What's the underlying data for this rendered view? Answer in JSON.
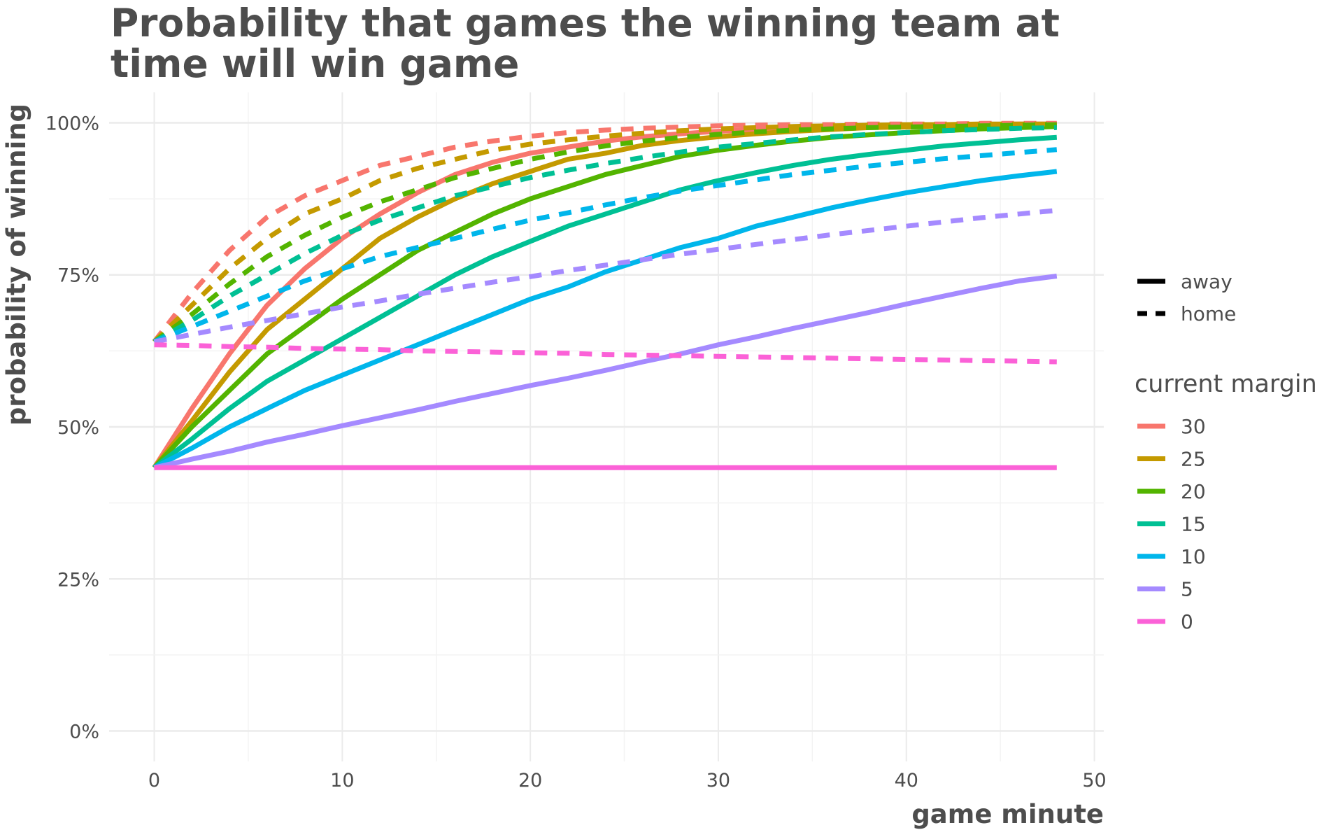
{
  "chart_data": {
    "type": "line",
    "title": "Probability that games the winning team at time will win game",
    "xlabel": "game minute",
    "ylabel": "probability of winning",
    "xlim": [
      -2.4,
      50.5
    ],
    "ylim": [
      -0.05,
      1.05
    ],
    "x_ticks": [
      0,
      10,
      20,
      30,
      40,
      50
    ],
    "x_tick_labels": [
      "0",
      "10",
      "20",
      "30",
      "40",
      "50"
    ],
    "y_ticks": [
      0,
      0.25,
      0.5,
      0.75,
      1.0
    ],
    "y_tick_labels": [
      "0%",
      "25%",
      "50%",
      "75%",
      "100%"
    ],
    "grid": true,
    "legend_position": "right",
    "linetype_legend": {
      "items": [
        {
          "label": "away",
          "dash": "solid"
        },
        {
          "label": "home",
          "dash": "dashed"
        }
      ]
    },
    "color_legend": {
      "title": "current margin",
      "items": [
        {
          "label": "30",
          "color": "#F8766D"
        },
        {
          "label": "25",
          "color": "#C49A00"
        },
        {
          "label": "20",
          "color": "#53B400"
        },
        {
          "label": "15",
          "color": "#00C094"
        },
        {
          "label": "10",
          "color": "#00B6EB"
        },
        {
          "label": "5",
          "color": "#A58AFF"
        },
        {
          "label": "0",
          "color": "#FB61D7"
        }
      ]
    },
    "x": [
      0,
      2,
      4,
      6,
      8,
      10,
      12,
      14,
      16,
      18,
      20,
      22,
      24,
      26,
      28,
      30,
      32,
      34,
      36,
      38,
      40,
      42,
      44,
      46,
      48
    ],
    "series": [
      {
        "margin": "30",
        "location": "away",
        "color": "#F8766D",
        "values": [
          0.433,
          0.53,
          0.62,
          0.7,
          0.76,
          0.81,
          0.85,
          0.885,
          0.915,
          0.935,
          0.95,
          0.96,
          0.97,
          0.977,
          0.982,
          0.986,
          0.989,
          0.991,
          0.993,
          0.995,
          0.996,
          0.997,
          0.997,
          0.998,
          0.998
        ]
      },
      {
        "margin": "25",
        "location": "away",
        "color": "#C49A00",
        "values": [
          0.433,
          0.51,
          0.59,
          0.66,
          0.71,
          0.76,
          0.81,
          0.845,
          0.875,
          0.9,
          0.92,
          0.94,
          0.95,
          0.963,
          0.971,
          0.977,
          0.982,
          0.986,
          0.989,
          0.992,
          0.993,
          0.995,
          0.996,
          0.997,
          0.997
        ]
      },
      {
        "margin": "20",
        "location": "away",
        "color": "#53B400",
        "values": [
          0.433,
          0.5,
          0.56,
          0.62,
          0.665,
          0.71,
          0.75,
          0.79,
          0.82,
          0.85,
          0.875,
          0.895,
          0.915,
          0.93,
          0.945,
          0.955,
          0.963,
          0.97,
          0.976,
          0.98,
          0.984,
          0.987,
          0.99,
          0.992,
          0.994
        ]
      },
      {
        "margin": "15",
        "location": "away",
        "color": "#00C094",
        "values": [
          0.433,
          0.48,
          0.53,
          0.575,
          0.61,
          0.645,
          0.68,
          0.715,
          0.75,
          0.78,
          0.805,
          0.83,
          0.85,
          0.87,
          0.89,
          0.905,
          0.918,
          0.93,
          0.94,
          0.948,
          0.955,
          0.962,
          0.967,
          0.972,
          0.976
        ]
      },
      {
        "margin": "10",
        "location": "away",
        "color": "#00B6EB",
        "values": [
          0.433,
          0.465,
          0.5,
          0.53,
          0.56,
          0.585,
          0.61,
          0.635,
          0.66,
          0.685,
          0.71,
          0.73,
          0.755,
          0.775,
          0.795,
          0.81,
          0.83,
          0.845,
          0.86,
          0.873,
          0.885,
          0.895,
          0.905,
          0.913,
          0.92
        ]
      },
      {
        "margin": "5",
        "location": "away",
        "color": "#A58AFF",
        "values": [
          0.433,
          0.447,
          0.46,
          0.475,
          0.488,
          0.502,
          0.515,
          0.528,
          0.542,
          0.555,
          0.568,
          0.58,
          0.593,
          0.607,
          0.62,
          0.635,
          0.648,
          0.662,
          0.675,
          0.688,
          0.702,
          0.715,
          0.728,
          0.74,
          0.748
        ]
      },
      {
        "margin": "0",
        "location": "away",
        "color": "#FB61D7",
        "values": [
          0.433,
          0.433,
          0.433,
          0.433,
          0.433,
          0.433,
          0.433,
          0.433,
          0.433,
          0.433,
          0.433,
          0.433,
          0.433,
          0.433,
          0.433,
          0.433,
          0.433,
          0.433,
          0.433,
          0.433,
          0.433,
          0.433,
          0.433,
          0.433,
          0.433
        ]
      },
      {
        "margin": "30",
        "location": "home",
        "color": "#F8766D",
        "values": [
          0.64,
          0.72,
          0.79,
          0.845,
          0.88,
          0.905,
          0.93,
          0.945,
          0.96,
          0.97,
          0.978,
          0.984,
          0.988,
          0.991,
          0.993,
          0.995,
          0.996,
          0.997,
          0.997,
          0.998,
          0.998,
          0.998,
          0.999,
          0.999,
          0.999
        ]
      },
      {
        "margin": "25",
        "location": "home",
        "color": "#C49A00",
        "values": [
          0.64,
          0.7,
          0.76,
          0.81,
          0.85,
          0.875,
          0.905,
          0.925,
          0.94,
          0.955,
          0.965,
          0.972,
          0.978,
          0.983,
          0.987,
          0.99,
          0.992,
          0.994,
          0.995,
          0.996,
          0.997,
          0.997,
          0.998,
          0.998,
          0.998
        ]
      },
      {
        "margin": "20",
        "location": "home",
        "color": "#53B400",
        "values": [
          0.64,
          0.685,
          0.735,
          0.78,
          0.815,
          0.845,
          0.87,
          0.89,
          0.91,
          0.925,
          0.94,
          0.952,
          0.962,
          0.97,
          0.976,
          0.981,
          0.985,
          0.988,
          0.99,
          0.992,
          0.993,
          0.994,
          0.995,
          0.996,
          0.997
        ]
      },
      {
        "margin": "15",
        "location": "home",
        "color": "#00C094",
        "values": [
          0.64,
          0.675,
          0.715,
          0.75,
          0.785,
          0.815,
          0.84,
          0.86,
          0.88,
          0.895,
          0.91,
          0.922,
          0.933,
          0.943,
          0.952,
          0.96,
          0.966,
          0.972,
          0.977,
          0.981,
          0.984,
          0.987,
          0.989,
          0.991,
          0.992
        ]
      },
      {
        "margin": "10",
        "location": "home",
        "color": "#00B6EB",
        "values": [
          0.64,
          0.665,
          0.69,
          0.715,
          0.74,
          0.76,
          0.78,
          0.795,
          0.81,
          0.825,
          0.84,
          0.852,
          0.865,
          0.877,
          0.888,
          0.897,
          0.906,
          0.915,
          0.922,
          0.929,
          0.935,
          0.941,
          0.946,
          0.951,
          0.956
        ]
      },
      {
        "margin": "5",
        "location": "home",
        "color": "#A58AFF",
        "values": [
          0.64,
          0.652,
          0.664,
          0.675,
          0.686,
          0.697,
          0.707,
          0.718,
          0.728,
          0.738,
          0.747,
          0.757,
          0.766,
          0.775,
          0.784,
          0.792,
          0.8,
          0.808,
          0.816,
          0.823,
          0.83,
          0.837,
          0.844,
          0.85,
          0.856
        ]
      },
      {
        "margin": "0",
        "location": "home",
        "color": "#FB61D7",
        "values": [
          0.635,
          0.634,
          0.632,
          0.631,
          0.629,
          0.628,
          0.627,
          0.625,
          0.624,
          0.623,
          0.622,
          0.621,
          0.619,
          0.618,
          0.617,
          0.616,
          0.615,
          0.614,
          0.613,
          0.612,
          0.611,
          0.61,
          0.609,
          0.608,
          0.607
        ]
      }
    ]
  }
}
